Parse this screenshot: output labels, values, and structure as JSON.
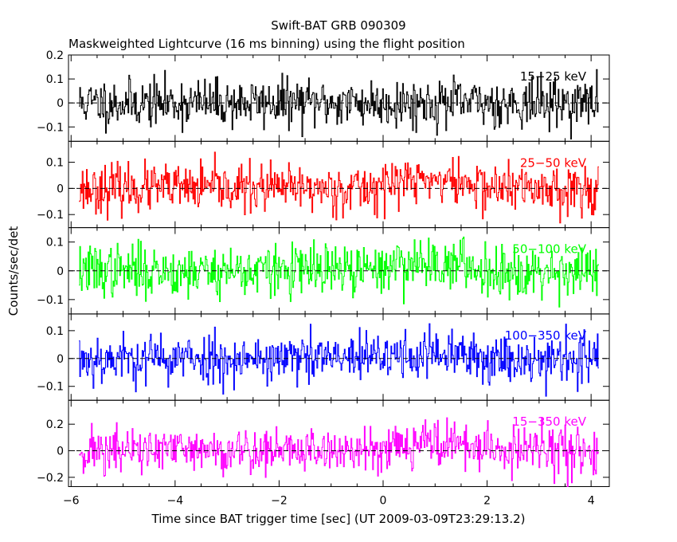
{
  "title": "Swift-BAT GRB 090309",
  "subtitle": "Maskweighted Lightcurve (16 ms binning) using the flight position",
  "ylabel": "Counts/sec/det",
  "xlabel": "Time since BAT trigger time [sec] (UT 2009-03-09T23:29:13.2)",
  "chart_data": {
    "type": "line",
    "style": "histogram-step",
    "x_range": [
      -6.05,
      4.35
    ],
    "x_ticks": [
      -6,
      -4,
      -2,
      0,
      2,
      4
    ],
    "x_tick_labels": [
      "−6",
      "−4",
      "−2",
      "0",
      "2",
      "4"
    ],
    "data_x_range": [
      -5.85,
      4.15
    ],
    "bin_width_sec": 0.016,
    "zero_dashed_line": true,
    "panels": [
      {
        "name": "15−25 keV",
        "color": "#000000",
        "ylim": [
          -0.16,
          0.2
        ],
        "y_ticks": [
          -0.1,
          0,
          0.1,
          0.2
        ],
        "y_tick_labels": [
          "−0.1",
          "0",
          "0.1",
          "0.2"
        ],
        "noise_sd": 0.05,
        "burst_amp": 0.0,
        "seed": 11
      },
      {
        "name": "25−50 keV",
        "color": "#ff0000",
        "ylim": [
          -0.15,
          0.18
        ],
        "y_ticks": [
          -0.1,
          0,
          0.1
        ],
        "y_tick_labels": [
          "−0.1",
          "0",
          "0.1"
        ],
        "noise_sd": 0.045,
        "burst_amp": 0.035,
        "seed": 23
      },
      {
        "name": "50−100 keV",
        "color": "#00ff00",
        "ylim": [
          -0.15,
          0.15
        ],
        "y_ticks": [
          -0.1,
          0,
          0.1
        ],
        "y_tick_labels": [
          "−0.1",
          "0",
          "0.1"
        ],
        "noise_sd": 0.045,
        "burst_amp": 0.03,
        "seed": 37
      },
      {
        "name": "100−350 keV",
        "color": "#0000ff",
        "ylim": [
          -0.15,
          0.16
        ],
        "y_ticks": [
          -0.1,
          0,
          0.1
        ],
        "y_tick_labels": [
          "−0.1",
          "0",
          "0.1"
        ],
        "noise_sd": 0.045,
        "burst_amp": 0.015,
        "seed": 53
      },
      {
        "name": "15−350 keV",
        "color": "#ff00ff",
        "ylim": [
          -0.27,
          0.38
        ],
        "y_ticks": [
          -0.2,
          0,
          0.2
        ],
        "y_tick_labels": [
          "−0.2",
          "0",
          "0.2"
        ],
        "noise_sd": 0.09,
        "burst_amp": 0.07,
        "seed": 71
      }
    ]
  }
}
